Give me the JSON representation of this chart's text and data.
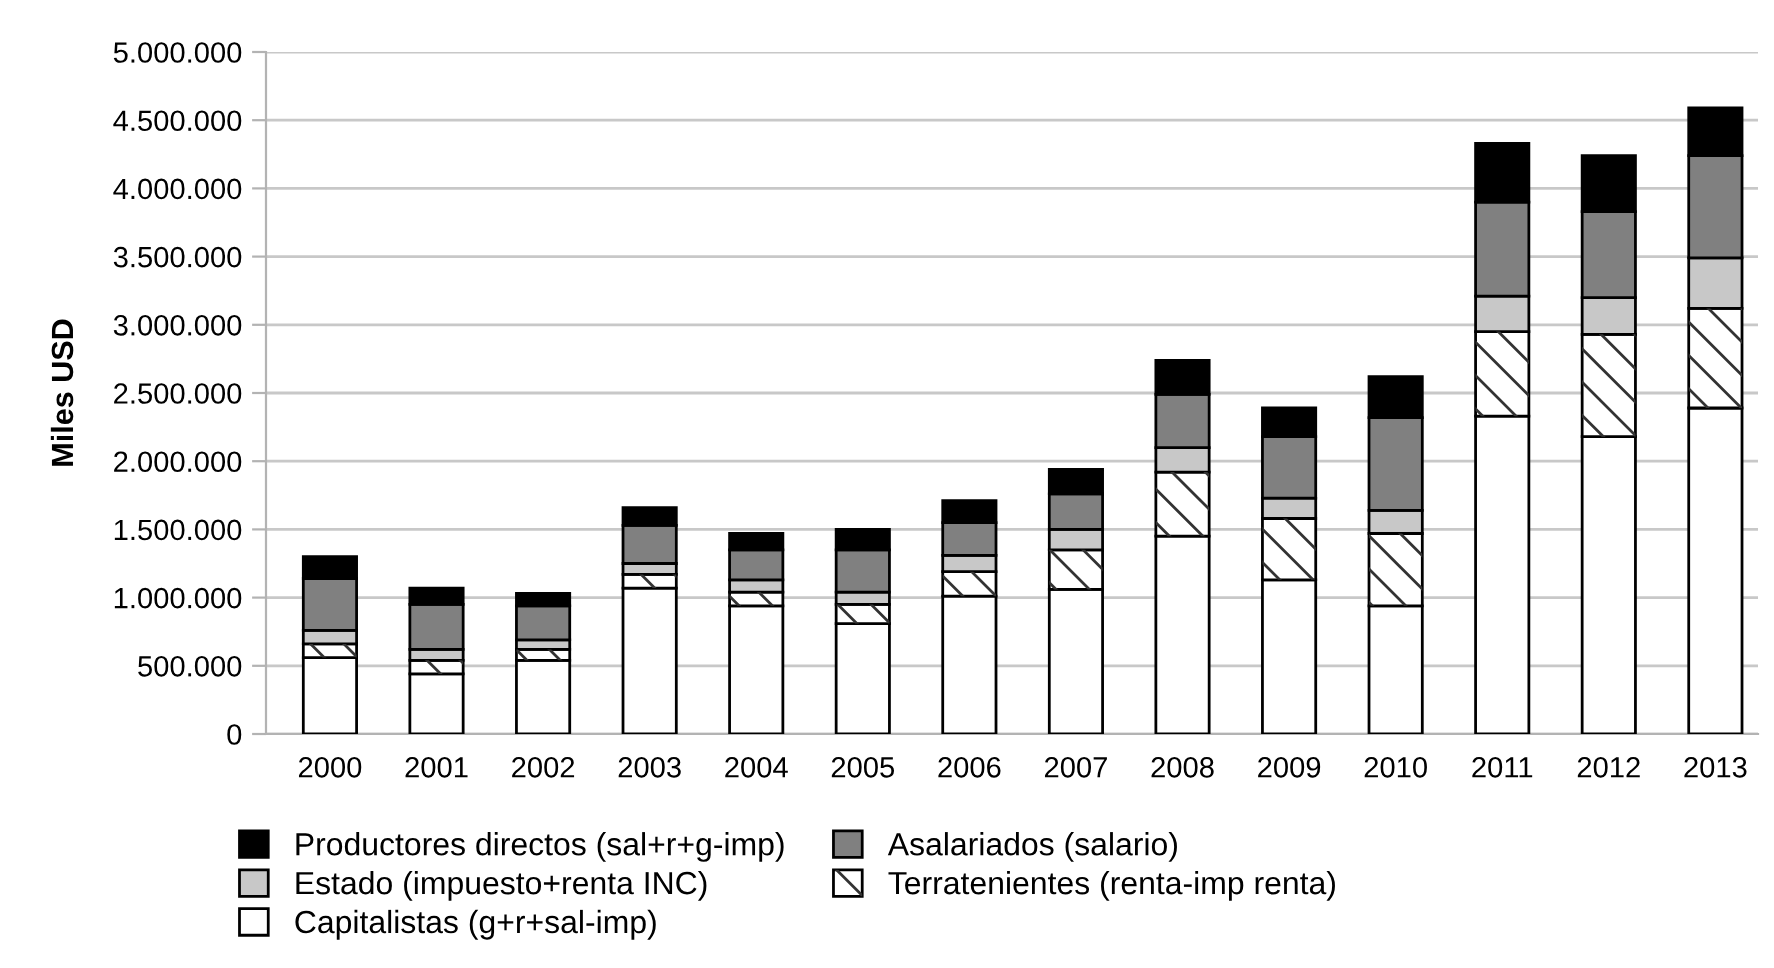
{
  "chart_data": {
    "type": "bar",
    "stacked": true,
    "ylabel": "Miles USD",
    "categories": [
      "2000",
      "2001",
      "2002",
      "2003",
      "2004",
      "2005",
      "2006",
      "2007",
      "2008",
      "2009",
      "2010",
      "2011",
      "2012",
      "2013"
    ],
    "series": [
      {
        "name": "Capitalistas (g+r+sal-imp)",
        "color": "#ffffff",
        "values": [
          560000,
          440000,
          540000,
          1070000,
          940000,
          810000,
          1010000,
          1060000,
          1450000,
          1130000,
          940000,
          2330000,
          2180000,
          2390000
        ]
      },
      {
        "name": "Terratenientes (renta-imp renta)",
        "color": "#ffffff",
        "values": [
          100000,
          100000,
          80000,
          100000,
          100000,
          140000,
          180000,
          290000,
          470000,
          450000,
          530000,
          620000,
          750000,
          730000
        ]
      },
      {
        "name": "Estado (impuesto+renta INC)",
        "color": "#c8c8c8",
        "values": [
          100000,
          80000,
          70000,
          80000,
          90000,
          90000,
          120000,
          150000,
          180000,
          150000,
          170000,
          260000,
          270000,
          370000
        ]
      },
      {
        "name": "Asalariados (salario)",
        "color": "#808080",
        "values": [
          380000,
          330000,
          250000,
          280000,
          220000,
          310000,
          240000,
          260000,
          390000,
          450000,
          680000,
          690000,
          630000,
          750000
        ]
      },
      {
        "name": "Productores directos (sal+r+g-imp)",
        "color": "#000000",
        "values": [
          160000,
          120000,
          90000,
          130000,
          120000,
          150000,
          160000,
          180000,
          250000,
          210000,
          300000,
          430000,
          410000,
          350000
        ]
      }
    ],
    "ylim": [
      0,
      5000000
    ],
    "yticks": [
      {
        "value": 0,
        "label": "0"
      },
      {
        "value": 500000,
        "label": "500.000"
      },
      {
        "value": 1000000,
        "label": "1.000.000"
      },
      {
        "value": 1500000,
        "label": "1.500.000"
      },
      {
        "value": 2000000,
        "label": "2.000.000"
      },
      {
        "value": 2500000,
        "label": "2.500.000"
      },
      {
        "value": 3000000,
        "label": "3.000.000"
      },
      {
        "value": 3500000,
        "label": "3.500.000"
      },
      {
        "value": 4000000,
        "label": "4.000.000"
      },
      {
        "value": 4500000,
        "label": "4.500.000"
      },
      {
        "value": 5000000,
        "label": "5.000.000"
      }
    ],
    "grid": "y",
    "legend": "bottom"
  }
}
